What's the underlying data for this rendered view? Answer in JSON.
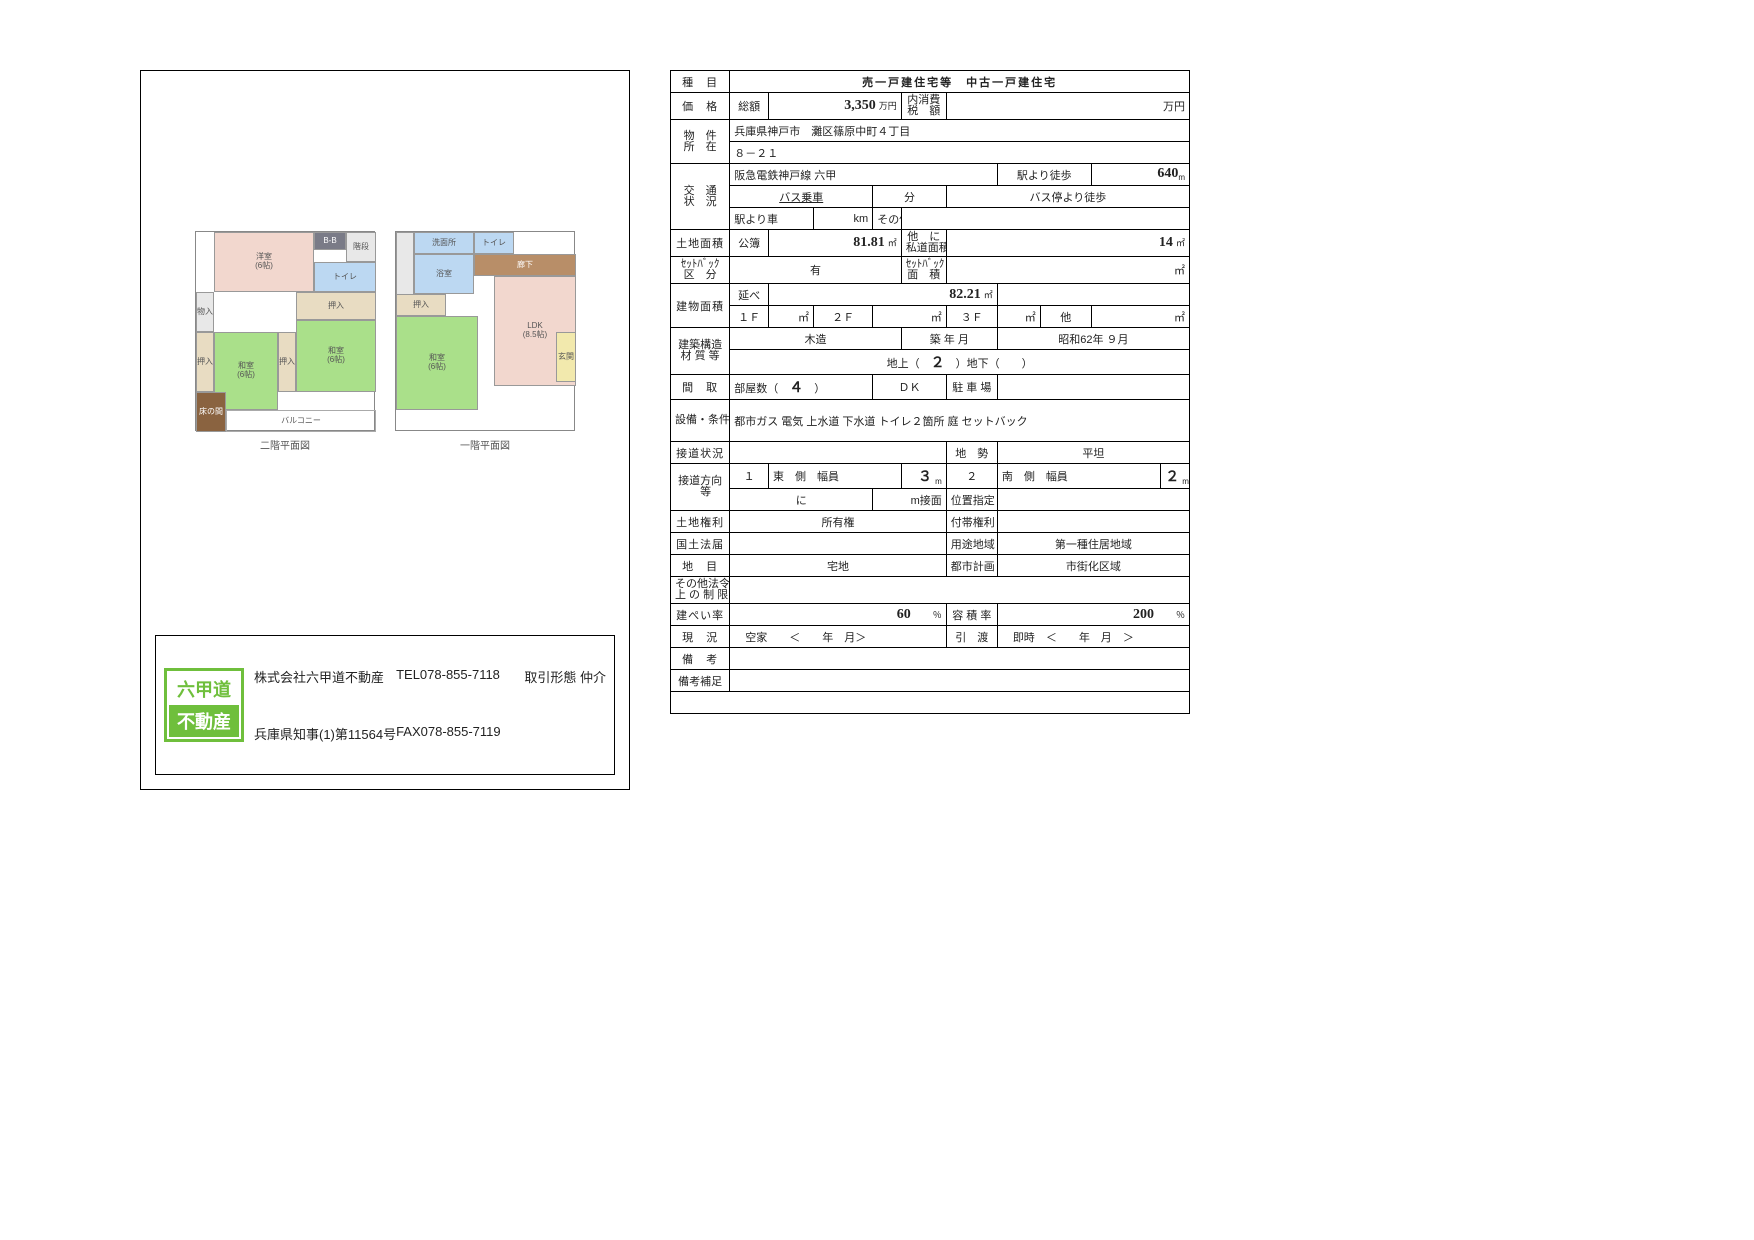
{
  "colors": {
    "greenRoom": "#aae08a",
    "blueRoom": "#bcd8f2",
    "pinkRoom": "#f2d7ce",
    "logoGreen": "#6fbf3c",
    "border": "#000000",
    "textDark": "#222222"
  },
  "company": {
    "logoTop": "六甲道",
    "logoBottom": "不動産",
    "name": "株式会社六甲道不動産",
    "tel": "TEL078-855-7118",
    "deal": "取引形態 仲介",
    "license": "兵庫県知事(1)第11564号",
    "fax": "FAX078-855-7119"
  },
  "floorplan": {
    "leftLabel": "二階平面図",
    "rightLabel": "一階平面図",
    "rooms2F": {
      "youshitsu": "洋室\n(6帖)",
      "wa1": "和室\n(6帖)",
      "wa2": "和室\n(6帖)",
      "stairs": "階段",
      "wc": "トイレ",
      "cl": "押入",
      "mono": "物入",
      "balcony": "バルコニー",
      "tokonoma": "床の間",
      "cl2": "押入",
      "bb": "B-B"
    },
    "rooms1F": {
      "senmen": "洗面所",
      "yokushitsu": "浴室",
      "rouka": "廊下",
      "wc": "トイレ",
      "wa": "和室\n(6帖)",
      "ldk": "LDK\n(8.5帖)",
      "genkan": "玄関",
      "cl": "押入"
    }
  },
  "header": {
    "shumoku_label": "種　目",
    "title_left": "売一戸建住宅等",
    "title_right": "中古一戸建住宅"
  },
  "price": {
    "label": "価　格",
    "sougaku": "総額",
    "value": "3,350",
    "unit": "万円",
    "tax_label": "内消費\n税　額",
    "tax_unit": "万円"
  },
  "location": {
    "label": "物　件\n所　在",
    "line1": "兵庫県神戸市　灘区篠原中町４丁目",
    "line2": "８－２１"
  },
  "transport": {
    "label": "交　通\n状　況",
    "line": "阪急電鉄神戸線 六甲",
    "walk_label": "駅より徒歩",
    "walk": "640",
    "walk_unit": "m",
    "bus_label": "バス乗車",
    "bus_min": "分",
    "busstop_label": "バス停より徒歩",
    "car_label": "駅より車",
    "km": "km",
    "other": "その他"
  },
  "land": {
    "label": "土地面積",
    "type": "公簿",
    "area": "81.81",
    "unit": "㎡",
    "other_label": "他　に\n私道面積",
    "other": "14",
    "other_unit": "㎡"
  },
  "setback": {
    "label": "ｾｯﾄﾊﾞｯｸ\n区　分",
    "value": "有",
    "area_label": "ｾｯﾄﾊﾞｯｸ\n面　積",
    "unit": "㎡"
  },
  "building": {
    "label": "建物面積",
    "nobe": "延べ",
    "total": "82.21",
    "unit": "㎡",
    "f1": "１Ｆ",
    "f2": "２Ｆ",
    "f3": "３Ｆ",
    "other": "他"
  },
  "structure": {
    "label": "建築構造\n材 質 等",
    "material": "木造",
    "year_label": "築 年 月",
    "year": "昭和62年 ９月",
    "floors_above_label": "地上（",
    "floors_above": "２",
    "floors_above_end": "）地下（",
    "floors_below_end": "）"
  },
  "madori": {
    "label": "間　取",
    "rooms_label": "部屋数（",
    "rooms": "４",
    "rooms_end": "）",
    "dk": "ＤＫ",
    "parking": "駐 車 場"
  },
  "setsubi": {
    "label": "設備・条件",
    "value": "都市ガス 電気 上水道 下水道 トイレ２箇所 庭 セットバック"
  },
  "road": {
    "label": "接道状況",
    "chisei_label": "地　勢",
    "chisei": "平坦"
  },
  "direction": {
    "label": "接道方向\n　等",
    "n1": "１",
    "d1": "東",
    "side": "側",
    "width_label": "幅員",
    "w1": "３",
    "unit": "m",
    "n2": "２",
    "d2": "南",
    "w2": "２",
    "ni": "に",
    "m_setsu": "m接面",
    "ichi": "位置指定"
  },
  "rights": {
    "label": "土地権利",
    "value": "所有権",
    "futai": "付帯権利"
  },
  "law": {
    "label": "国土法届",
    "youto_label": "用途地域",
    "youto": "第一種住居地域"
  },
  "chimoku": {
    "label": "地　目",
    "value": "宅地",
    "toshi_label": "都市計画",
    "toshi": "市街化区域"
  },
  "sonota": {
    "label": "その他法令\n上 の 制 限"
  },
  "kenpei": {
    "label": "建ぺい率",
    "value": "60",
    "unit": "％",
    "youseki_label": "容 積 率",
    "youseki": "200"
  },
  "genkyo": {
    "label": "現　況",
    "value": "空家",
    "lt": "＜",
    "year": "年",
    "month": "月＞",
    "hikiwatashi": "引　渡",
    "sokuji": "即時",
    "gt": "＞"
  },
  "bikou": {
    "label": "備　考"
  },
  "bikou2": {
    "label": "備考補足"
  }
}
